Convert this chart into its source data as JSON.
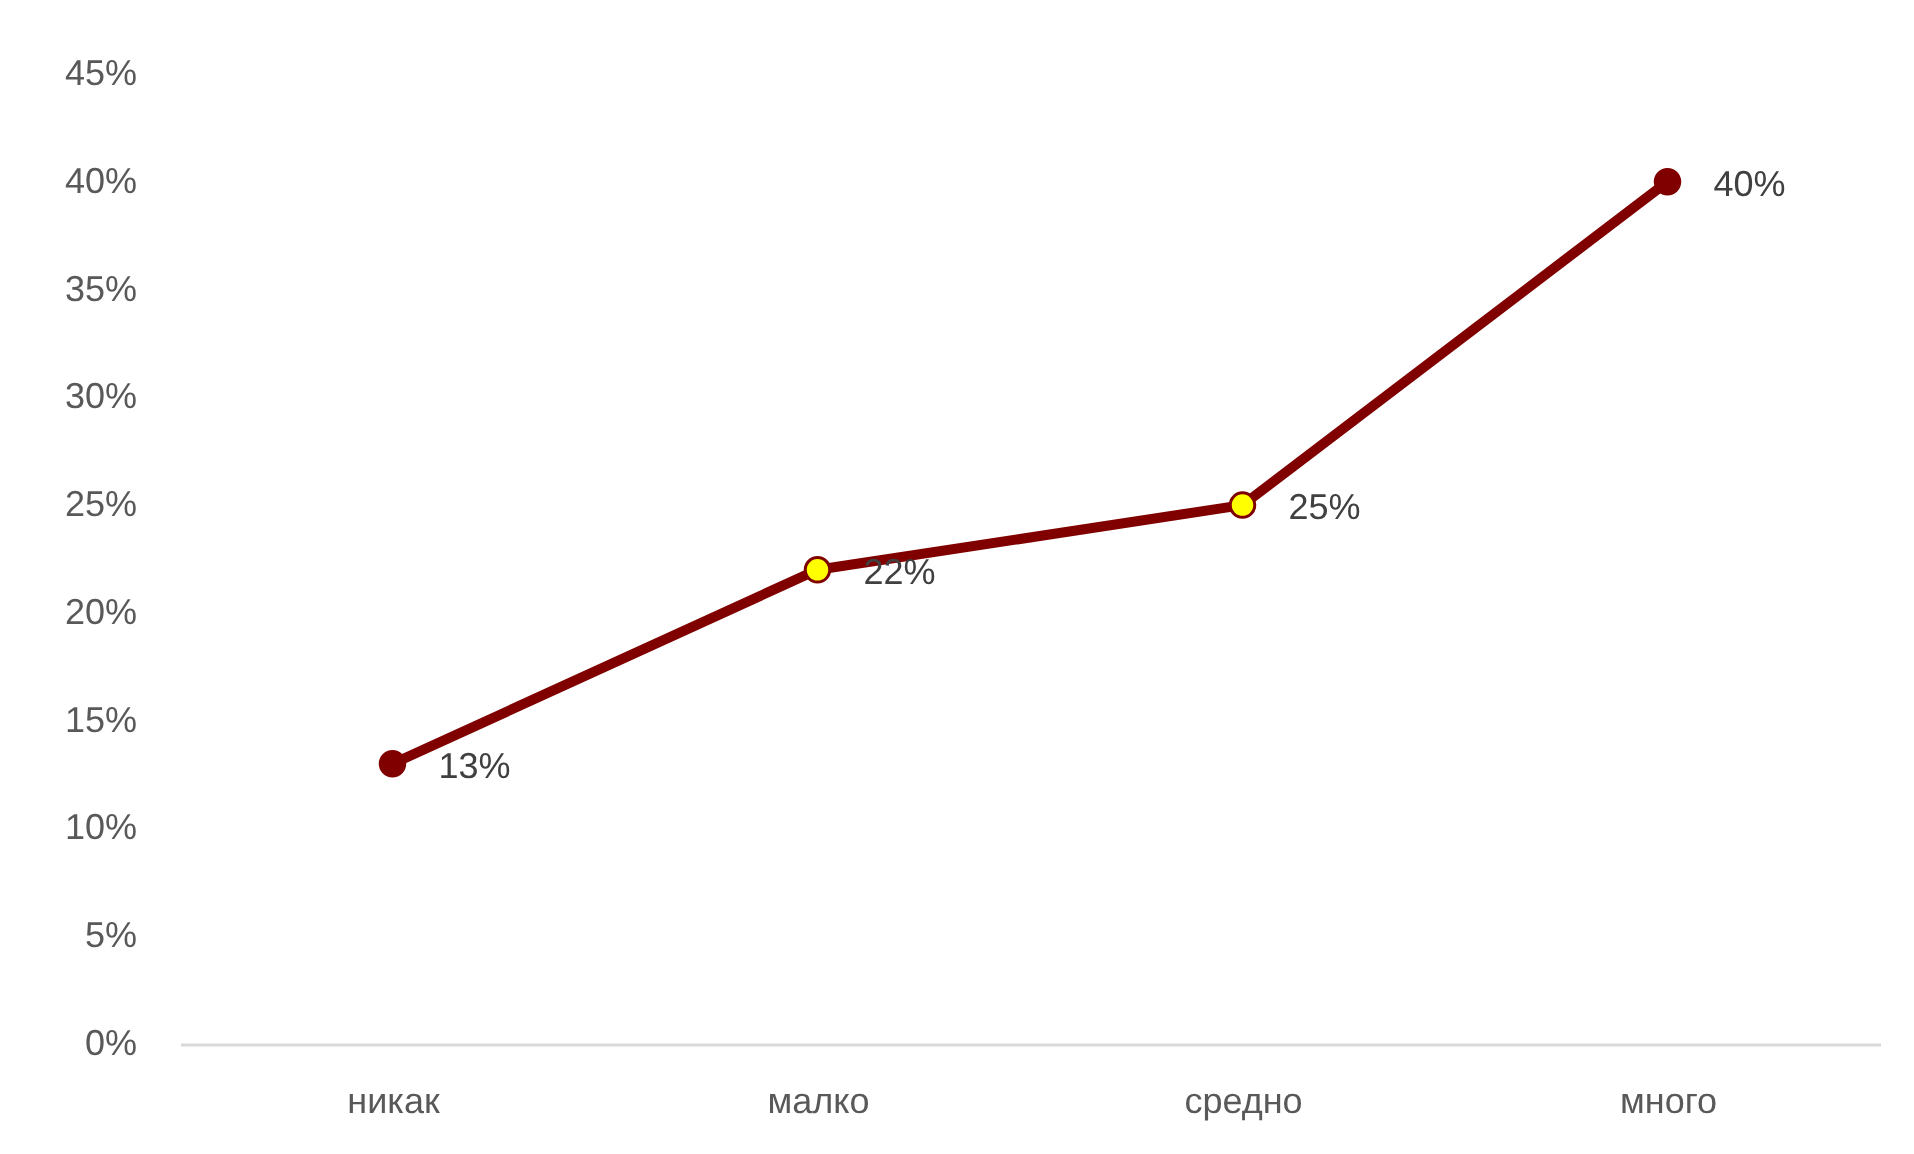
{
  "chart_data": {
    "type": "line",
    "categories": [
      "никак",
      "малко",
      "средно",
      "много"
    ],
    "series": [
      {
        "color": "#800000",
        "colors": [
          "#800000",
          "#ffff00",
          "#ffff00",
          "#800000"
        ],
        "values": [
          13,
          22,
          25,
          40
        ],
        "value_labels": [
          "13%",
          "22%",
          "25%",
          "40%"
        ]
      }
    ],
    "ylim": [
      0,
      45
    ],
    "yticks": [
      {
        "value": 0,
        "label": "0%"
      },
      {
        "value": 5,
        "label": "5%"
      },
      {
        "value": 10,
        "label": "10%"
      },
      {
        "value": 15,
        "label": "15%"
      },
      {
        "value": 20,
        "label": "20%"
      },
      {
        "value": 25,
        "label": "25%"
      },
      {
        "value": 30,
        "label": "30%"
      },
      {
        "value": 35,
        "label": "35%"
      },
      {
        "value": 40,
        "label": "40%"
      },
      {
        "value": 45,
        "label": "45%"
      }
    ],
    "marker": "circle"
  }
}
